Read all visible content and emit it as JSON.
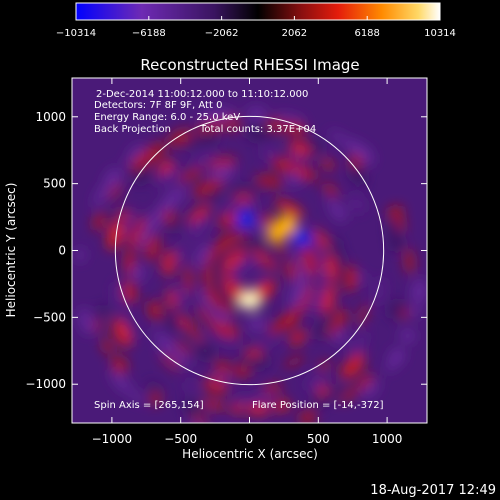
{
  "chart_data": {
    "type": "heatmap",
    "title": "Reconstructed RHESSI Image",
    "xlabel": "Heliocentric X (arcsec)",
    "ylabel": "Heliocentric Y (arcsec)",
    "xlim": [
      -1290,
      1290
    ],
    "ylim": [
      -1290,
      1290
    ],
    "xticks": [
      -1000,
      -500,
      0,
      500,
      1000
    ],
    "yticks": [
      -1000,
      -500,
      0,
      500,
      1000
    ],
    "xtick_labels": [
      "−1000",
      "−500",
      "0",
      "500",
      "1000"
    ],
    "ytick_labels": [
      "−1000",
      "−500",
      "0",
      "500",
      "1000"
    ],
    "colorbar": {
      "min": -10314,
      "max": 10314,
      "ticks": [
        -10314,
        -6188,
        -2062,
        2062,
        6188,
        10314
      ],
      "tick_labels": [
        "−10314",
        "−6188",
        "−2062",
        "2062",
        "6188",
        "10314"
      ],
      "colors": [
        "#0000ff",
        "#6e2ab4",
        "#5a1f8a",
        "#000000",
        "#c01818",
        "#ff4a00",
        "#ff9a00",
        "#ffe27a",
        "#ffffff"
      ]
    },
    "solar_limb_radius": 975,
    "annotations": {
      "time_range": "2-Dec-2014 11:00:12.000 to 11:10:12.000",
      "detectors": "Detectors: 7F 8F 9F, Att 0",
      "energy": "Energy Range: 6.0 - 25.0 keV",
      "method": "Back Projection",
      "counts": "Total counts: 3.37E+04",
      "spin_axis": "Spin Axis = [265,154]",
      "flare_position": "Flare Position = [-14,-372]"
    },
    "sources": [
      {
        "x": 0,
        "y": -372,
        "value": 10314
      },
      {
        "x": 200,
        "y": 130,
        "value": 6500
      },
      {
        "x": 270,
        "y": 200,
        "value": 5200
      },
      {
        "x": -30,
        "y": 230,
        "value": -7000
      },
      {
        "x": 380,
        "y": 90,
        "value": -6500
      }
    ]
  },
  "footer": {
    "timestamp": "18-Aug-2017 12:49"
  }
}
